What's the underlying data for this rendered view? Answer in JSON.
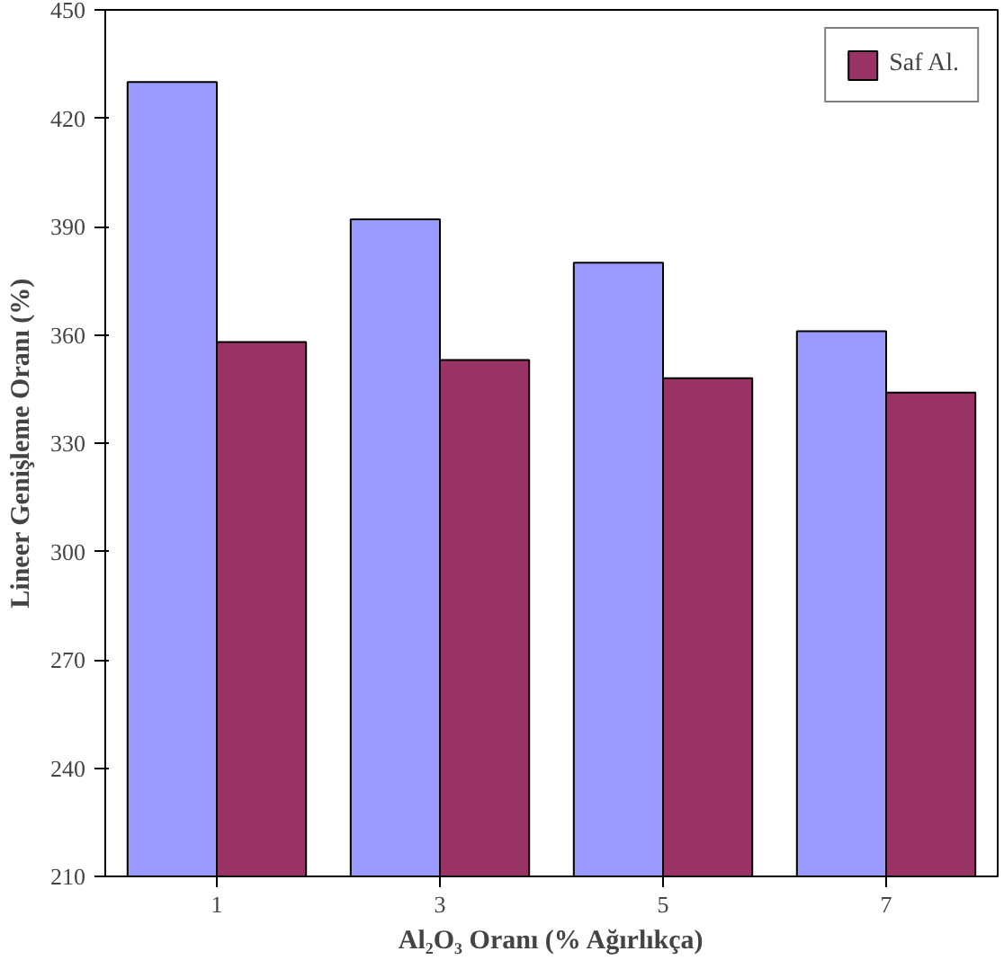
{
  "chart_data": {
    "type": "bar",
    "xlabel": "Al₂O₃ Oranı (% Ağırlıkça)",
    "ylabel": "Lineer Genişleme Oranı (%)",
    "categories": [
      "1",
      "3",
      "5",
      "7"
    ],
    "series": [
      {
        "color": "#9999ff",
        "values": [
          430,
          392,
          380,
          361
        ]
      },
      {
        "name": "Saf Al.",
        "color": "#993366",
        "values": [
          358,
          353,
          348,
          344
        ]
      }
    ],
    "ylim": [
      210,
      450
    ],
    "yticks": [
      210,
      240,
      270,
      300,
      330,
      360,
      390,
      420,
      450
    ],
    "legend": "top right",
    "grid": false
  }
}
